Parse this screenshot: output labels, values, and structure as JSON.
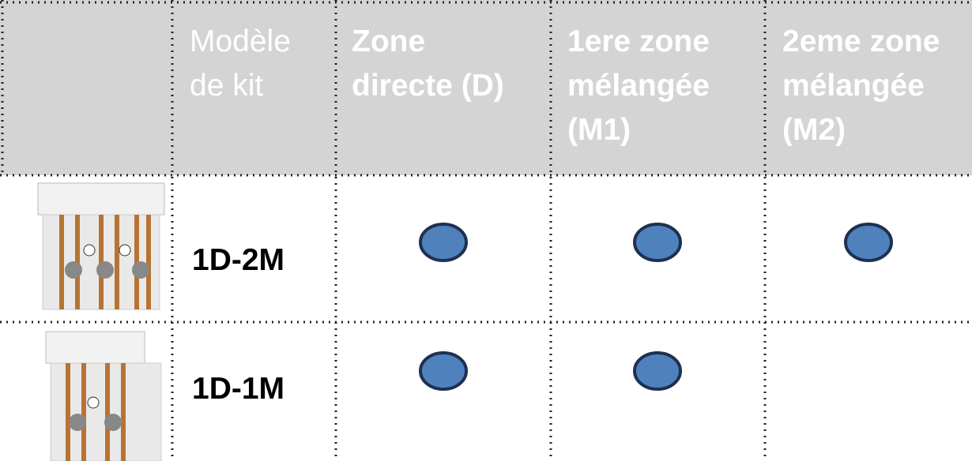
{
  "table": {
    "header": [
      [
        "Modèle",
        "de kit"
      ],
      [
        "Zone",
        "directe (D)"
      ],
      [
        "1ere zone",
        "mélangée",
        "(M1)"
      ],
      [
        "2eme zone",
        "mélangée",
        "(M2)"
      ]
    ],
    "rows": [
      {
        "model": "1D-2M",
        "zones": [
          true,
          true,
          true
        ]
      },
      {
        "model": "1D-1M",
        "zones": [
          true,
          true,
          false
        ]
      }
    ]
  }
}
